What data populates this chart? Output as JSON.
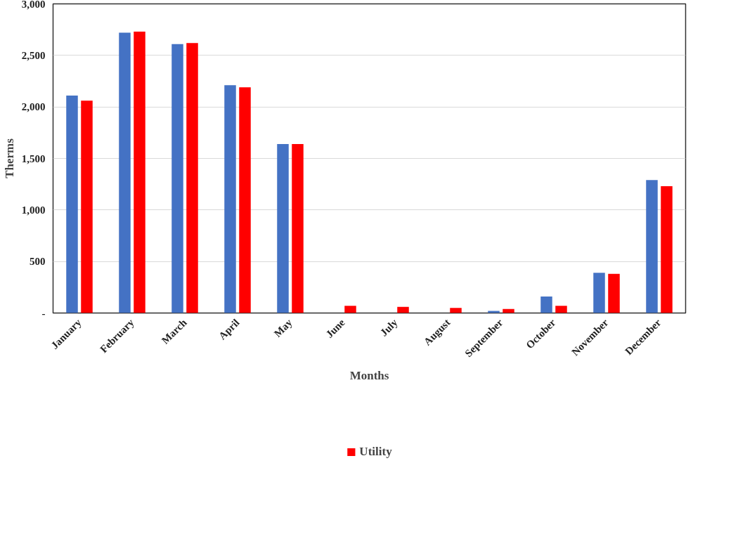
{
  "chart_data": {
    "type": "bar",
    "xlabel": "Months",
    "ylabel": "Therms",
    "categories": [
      "January",
      "February",
      "March",
      "April",
      "May",
      "June",
      "July",
      "August",
      "September",
      "October",
      "November",
      "December"
    ],
    "series": [
      {
        "color": "#4472c4",
        "values": [
          2110,
          2720,
          2610,
          2210,
          1640,
          0,
          0,
          0,
          20,
          160,
          390,
          1290
        ]
      },
      {
        "name": "Utility",
        "color": "#ff0000",
        "values": [
          2060,
          2730,
          2620,
          2190,
          1640,
          70,
          60,
          50,
          40,
          70,
          380,
          1230
        ]
      }
    ],
    "ylim": [
      0,
      3000
    ],
    "yticks": [
      {
        "value": 0,
        "label": "-"
      },
      500,
      {
        "value": 1000,
        "label": "1,000"
      },
      {
        "value": 1500,
        "label": "1,500"
      },
      {
        "value": 2000,
        "label": "2,000"
      },
      {
        "value": 2500,
        "label": "2,500"
      },
      {
        "value": 3000,
        "label": "3,000"
      }
    ],
    "grid": "y",
    "legend": "bottom"
  }
}
